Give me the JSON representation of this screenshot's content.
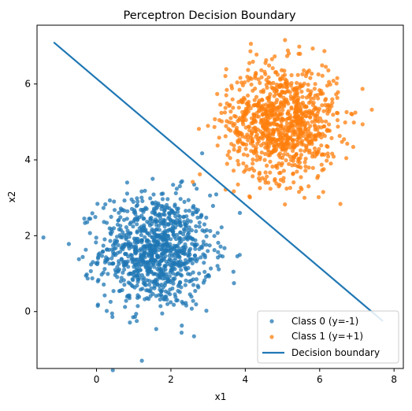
{
  "chart_data": {
    "type": "scatter",
    "title": "Perceptron Decision Boundary",
    "xlabel": "x1",
    "ylabel": "x2",
    "xlim": [
      -1.6,
      8.25
    ],
    "ylim": [
      -1.5,
      7.55
    ],
    "xticks": [
      0,
      2,
      4,
      6,
      8
    ],
    "yticks": [
      0,
      2,
      4,
      6
    ],
    "grid": false,
    "legend_position": "bottom-right",
    "series": [
      {
        "name": "Class 0 (y=-1)",
        "kind": "scatter",
        "color": "#1f77b4",
        "center": [
          1.6,
          1.6
        ],
        "spread": 0.75,
        "count": 1000
      },
      {
        "name": "Class 1 (y=+1)",
        "kind": "scatter",
        "color": "#ff7f0e",
        "center": [
          5.0,
          5.0
        ],
        "spread": 0.75,
        "count": 1000
      },
      {
        "name": "Decision boundary",
        "kind": "line",
        "color": "#1f77b4",
        "x": [
          -1.15,
          7.7
        ],
        "y": [
          7.1,
          -0.25
        ]
      }
    ]
  }
}
